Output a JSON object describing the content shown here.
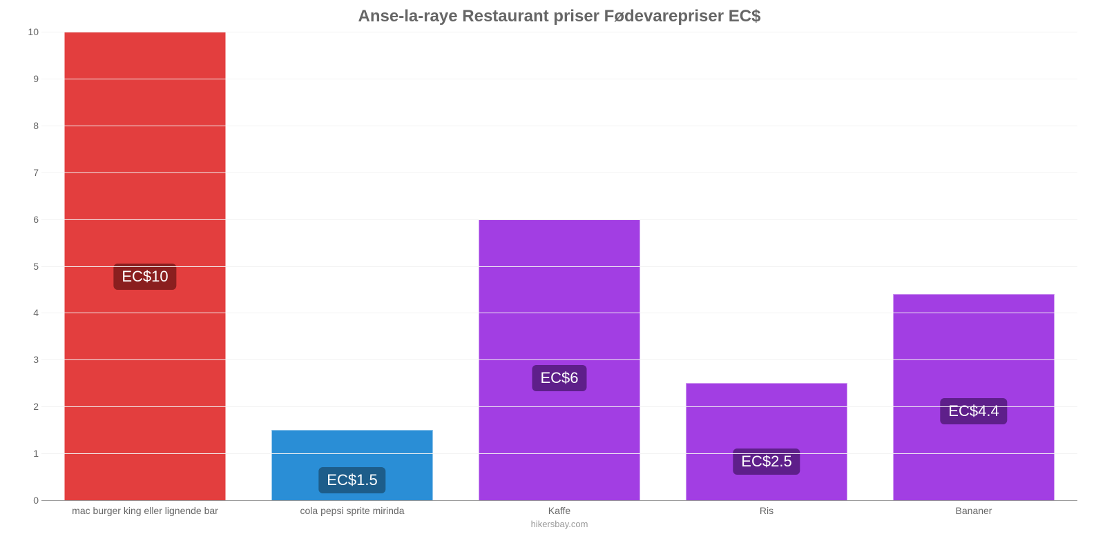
{
  "chart": {
    "type": "bar",
    "title": "Anse-la-raye Restaurant priser Fødevarepriser EC$",
    "title_color": "#666666",
    "title_fontsize": 24,
    "source": "hikersbay.com",
    "background_color": "#ffffff",
    "grid_color": "#f2f2f2",
    "axis_color": "#999999",
    "label_color": "#666666",
    "label_fontsize": 14,
    "ylim": [
      0,
      10
    ],
    "yticks": [
      0,
      1,
      2,
      3,
      4,
      5,
      6,
      7,
      8,
      9,
      10
    ],
    "bar_width_pct": 78,
    "categories": [
      "mac burger king eller lignende bar",
      "cola pepsi sprite mirinda",
      "Kaffe",
      "Ris",
      "Bananer"
    ],
    "values": [
      10,
      1.5,
      6,
      2.5,
      4.4
    ],
    "value_labels": [
      "EC$10",
      "EC$1.5",
      "EC$6",
      "EC$2.5",
      "EC$4.4"
    ],
    "bar_colors": [
      "#e33e3e",
      "#2a8ed6",
      "#a23ee3",
      "#a23ee3",
      "#a23ee3"
    ],
    "badge_colors": [
      "#8a1f1f",
      "#1d5d8a",
      "#5e1f8a",
      "#5e1f8a",
      "#5e1f8a"
    ],
    "badge_fontsize": 22,
    "badge_offsets_pct": [
      45,
      10,
      39,
      22,
      37
    ]
  }
}
